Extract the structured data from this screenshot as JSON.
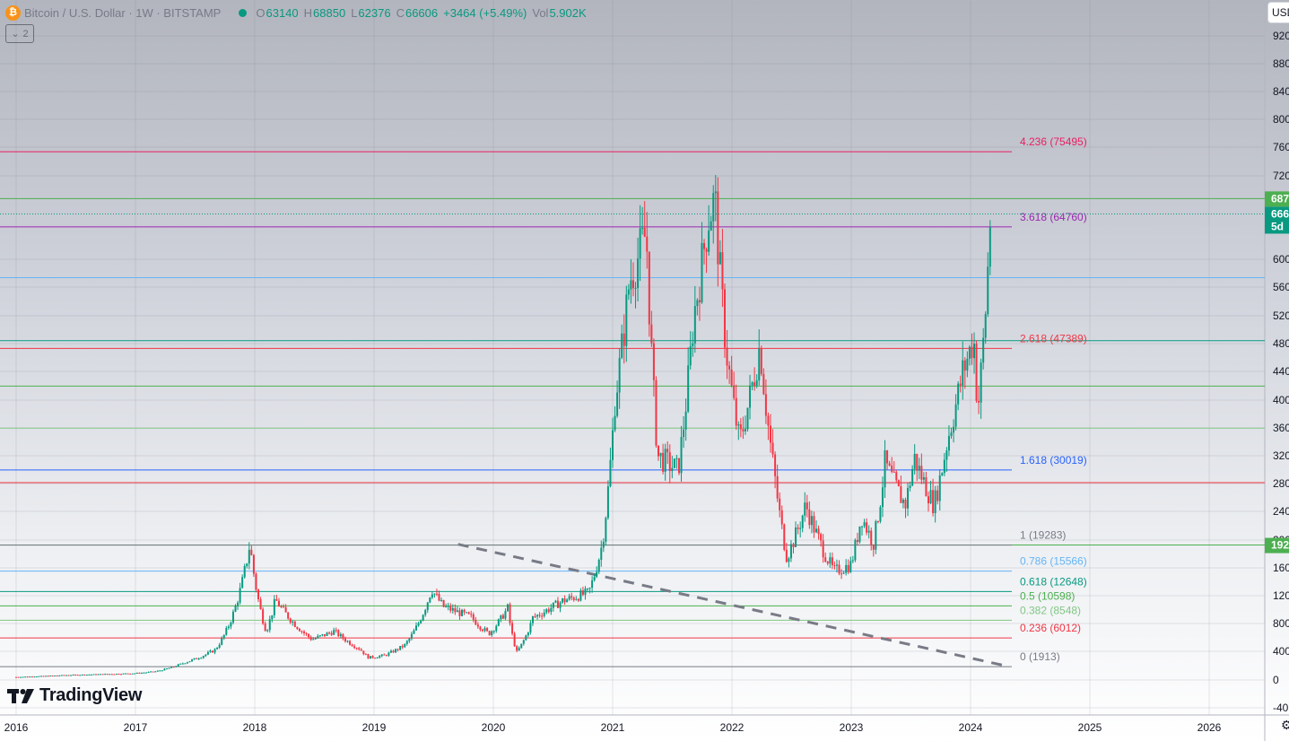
{
  "header": {
    "symbol_icon": "bitcoin-icon",
    "symbol_icon_glyph": "₿",
    "title": "Bitcoin / U.S. Dollar · 1W · BITSTAMP",
    "ohlc": {
      "o_label": "O",
      "o": "63140",
      "h_label": "H",
      "h": "68850",
      "l_label": "L",
      "l": "62376",
      "c_label": "C",
      "c": "66606",
      "change": "+3464 (+5.49%)",
      "vol_label": "Vol",
      "vol": "5.902K"
    },
    "collapse_label": "2",
    "currency_button": "USD"
  },
  "logo": {
    "text": "TradingView"
  },
  "colors": {
    "up": "#089981",
    "down": "#f23645",
    "green_badge": "#4caf50"
  },
  "chart_data": {
    "type": "candlestick",
    "title": "Bitcoin / U.S. Dollar · 1W · BITSTAMP",
    "x_ticks": [
      "2016",
      "2017",
      "2018",
      "2019",
      "2020",
      "2021",
      "2022",
      "2023",
      "2024",
      "2025",
      "2026"
    ],
    "y_ticks": [
      "920",
      "880",
      "840",
      "800",
      "760",
      "720",
      "687",
      "666",
      "5d",
      "600",
      "560",
      "520",
      "480",
      "440",
      "400",
      "360",
      "320",
      "280",
      "240",
      "200",
      "192",
      "160",
      "120",
      "800",
      "400",
      "0",
      "-40"
    ],
    "ylim": [
      -4000,
      94000
    ],
    "last_price": {
      "price": 66606,
      "label_price": "666",
      "label_countdown": "5d",
      "period_high_label": "687",
      "level_badge": "192"
    },
    "price_path": [
      [
        "2016-01-01",
        430
      ],
      [
        "2016-06-01",
        700
      ],
      [
        "2016-12-31",
        960
      ],
      [
        "2017-03-01",
        1200
      ],
      [
        "2017-06-01",
        2500
      ],
      [
        "2017-09-01",
        4300
      ],
      [
        "2017-12-17",
        19500
      ],
      [
        "2018-02-05",
        7000
      ],
      [
        "2018-03-05",
        11500
      ],
      [
        "2018-06-25",
        5800
      ],
      [
        "2018-09-01",
        7000
      ],
      [
        "2018-11-20",
        4400
      ],
      [
        "2018-12-15",
        3200
      ],
      [
        "2019-02-01",
        3500
      ],
      [
        "2019-04-05",
        5000
      ],
      [
        "2019-06-26",
        13000
      ],
      [
        "2019-08-01",
        10500
      ],
      [
        "2019-10-25",
        9000
      ],
      [
        "2019-12-18",
        6600
      ],
      [
        "2020-02-14",
        10300
      ],
      [
        "2020-03-13",
        4000
      ],
      [
        "2020-05-01",
        8900
      ],
      [
        "2020-07-30",
        11300
      ],
      [
        "2020-10-20",
        12500
      ],
      [
        "2020-11-30",
        19500
      ],
      [
        "2021-01-08",
        40000
      ],
      [
        "2021-02-21",
        57000
      ],
      [
        "2021-04-14",
        64000
      ],
      [
        "2021-05-19",
        32000
      ],
      [
        "2021-07-20",
        30000
      ],
      [
        "2021-09-06",
        52000
      ],
      [
        "2021-10-20",
        66000
      ],
      [
        "2021-11-10",
        68800
      ],
      [
        "2021-12-15",
        47000
      ],
      [
        "2022-01-24",
        34000
      ],
      [
        "2022-03-28",
        48000
      ],
      [
        "2022-05-12",
        29000
      ],
      [
        "2022-06-18",
        17600
      ],
      [
        "2022-08-15",
        25000
      ],
      [
        "2022-11-09",
        15500
      ],
      [
        "2022-12-31",
        16500
      ],
      [
        "2023-02-01",
        23500
      ],
      [
        "2023-03-10",
        19600
      ],
      [
        "2023-04-14",
        31000
      ],
      [
        "2023-06-15",
        25000
      ],
      [
        "2023-07-13",
        31800
      ],
      [
        "2023-09-11",
        25000
      ],
      [
        "2023-10-23",
        34500
      ],
      [
        "2023-12-08",
        44000
      ],
      [
        "2024-01-11",
        48900
      ],
      [
        "2024-01-23",
        38500
      ],
      [
        "2024-02-15",
        52000
      ],
      [
        "2024-03-04",
        68850
      ]
    ],
    "fib_levels": [
      {
        "label": "4.236 (75495)",
        "value": 75495,
        "color": "#e91e63"
      },
      {
        "label": "3.618 (64760)",
        "value": 64760,
        "color": "#9c27b0"
      },
      {
        "label": "2.618 (47389)",
        "value": 47389,
        "color": "#f23645"
      },
      {
        "label": "1.618 (30019)",
        "value": 30019,
        "color": "#2962ff"
      },
      {
        "label": "1 (19283)",
        "value": 19283,
        "color": "#787b86"
      },
      {
        "label": "0.786 (15566)",
        "value": 15566,
        "color": "#64b5f6"
      },
      {
        "label": "0.618 (12648)",
        "value": 12648,
        "color": "#089981"
      },
      {
        "label": "0.5 (10598)",
        "value": 10598,
        "color": "#4caf50"
      },
      {
        "label": "0.382 (8548)",
        "value": 8548,
        "color": "#81c784"
      },
      {
        "label": "0.236 (6012)",
        "value": 6012,
        "color": "#f23645"
      },
      {
        "label": "0 (1913)",
        "value": 1913,
        "color": "#787b86"
      }
    ],
    "horizontal_lines": [
      {
        "value": 68800,
        "color": "#4caf50"
      },
      {
        "value": 57500,
        "color": "#64b5f6"
      },
      {
        "value": 48500,
        "color": "#089981"
      },
      {
        "value": 42000,
        "color": "#4caf50"
      },
      {
        "value": 36000,
        "color": "#81c784"
      },
      {
        "value": 28200,
        "color": "#f23645"
      },
      {
        "value": 19300,
        "color": "#4caf50"
      }
    ],
    "trendline": {
      "style": "dashed",
      "color": "#787b86",
      "from": [
        "2019-09-15",
        19400
      ],
      "to": [
        "2024-04-20",
        2000
      ]
    }
  }
}
